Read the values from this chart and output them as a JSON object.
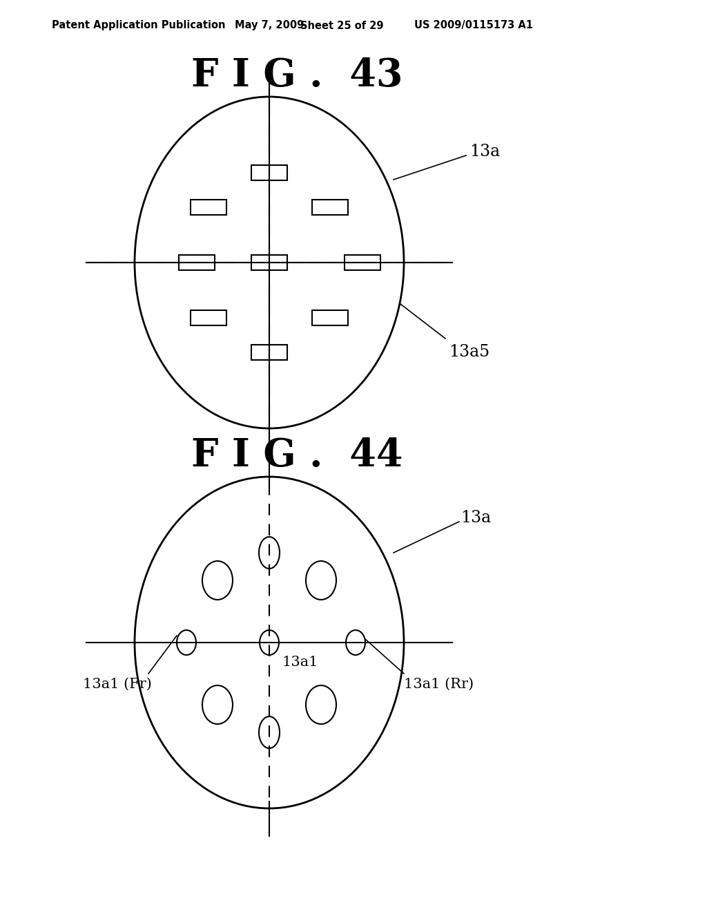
{
  "background_color": "#ffffff",
  "header_text": "Patent Application Publication",
  "header_date": "May 7, 2009",
  "header_sheet": "Sheet 25 of 29",
  "header_patent": "US 2009/0115173 A1",
  "fig43_title": "F I G .  43",
  "fig44_title": "F I G .  44",
  "fig43_label": "13a",
  "fig43_label2": "13a5",
  "fig44_label": "13a",
  "fig44_label_center": "13a1",
  "fig44_label_fr": "13a1 (Fr)",
  "fig44_label_rr": "13a1 (Rr)"
}
